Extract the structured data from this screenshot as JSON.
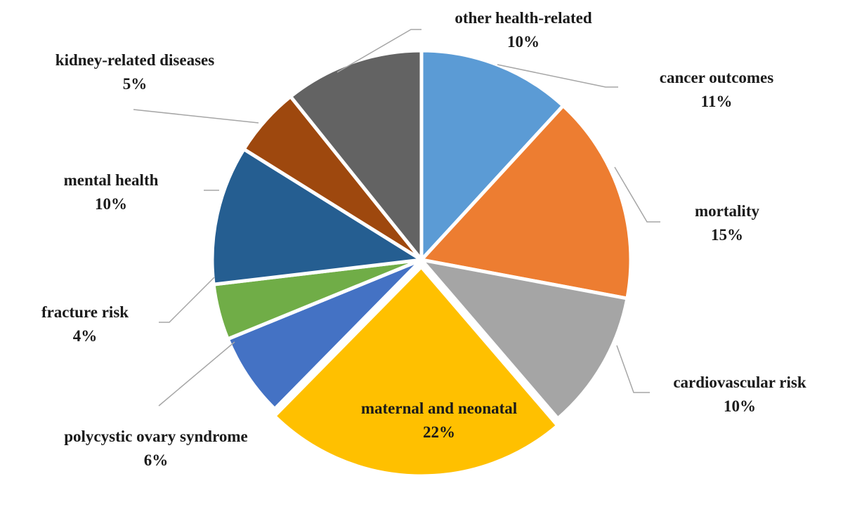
{
  "chart_data": {
    "type": "pie",
    "title": "",
    "start_angle_deg": 0,
    "direction": "clockwise",
    "slices": [
      {
        "label": "cancer outcomes",
        "pct_label": "11%",
        "value": 11,
        "color": "#5b9bd5",
        "exploded": false
      },
      {
        "label": "mortality",
        "pct_label": "15%",
        "value": 15,
        "color": "#ed7d31",
        "exploded": false
      },
      {
        "label": "cardiovascular risk",
        "pct_label": "10%",
        "value": 10,
        "color": "#a5a5a5",
        "exploded": false
      },
      {
        "label": "maternal and neonatal",
        "pct_label": "22%",
        "value": 22,
        "color": "#ffc000",
        "exploded": true
      },
      {
        "label": "polycystic ovary syndrome",
        "pct_label": "6%",
        "value": 6,
        "color": "#4472c4",
        "exploded": false
      },
      {
        "label": "fracture risk",
        "pct_label": "4%",
        "value": 4,
        "color": "#70ad47",
        "exploded": false
      },
      {
        "label": "mental health",
        "pct_label": "10%",
        "value": 10,
        "color": "#255e91",
        "exploded": false
      },
      {
        "label": "kidney-related diseases",
        "pct_label": "5%",
        "value": 5,
        "color": "#9e480e",
        "exploded": false
      },
      {
        "label": "other health-related",
        "pct_label": "10%",
        "value": 10,
        "color": "#636363",
        "exploded": false
      }
    ]
  }
}
